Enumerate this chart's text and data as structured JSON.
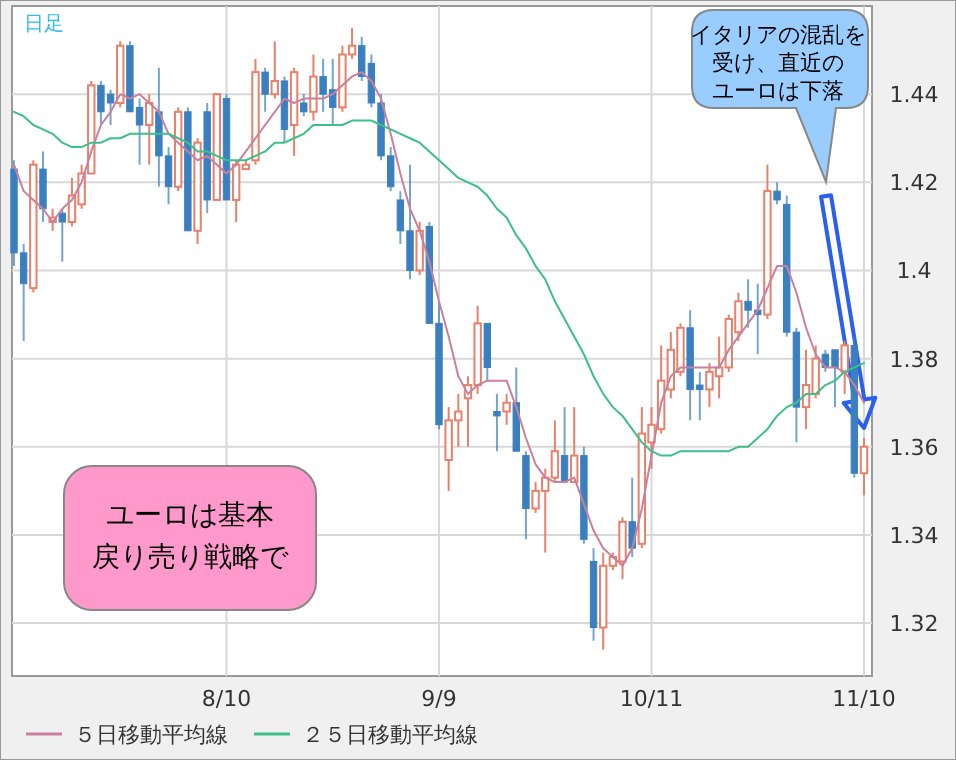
{
  "chart_data": {
    "type": "candlestick",
    "categories": [
      null,
      null,
      null,
      null,
      null,
      null,
      null,
      null,
      null,
      null,
      null,
      null,
      null,
      null,
      null,
      null,
      null,
      null,
      null,
      null,
      null,
      null,
      "8/10",
      null,
      null,
      null,
      null,
      null,
      null,
      null,
      null,
      null,
      null,
      null,
      null,
      null,
      null,
      null,
      null,
      null,
      null,
      null,
      null,
      null,
      "9/9",
      null,
      null,
      null,
      null,
      null,
      null,
      null,
      null,
      null,
      null,
      null,
      null,
      null,
      null,
      null,
      null,
      null,
      null,
      null,
      null,
      null,
      "10/11",
      null,
      null,
      null,
      null,
      null,
      null,
      null,
      null,
      null,
      null,
      null,
      null,
      null,
      null,
      null,
      null,
      null,
      null,
      null,
      null,
      null,
      "11/10"
    ],
    "colors": [
      "#3a80c0",
      "#3a80c0",
      "#e8806a",
      "#3a80c0",
      "#e8806a",
      "#3a80c0",
      "#e8806a",
      "#e8806a",
      "#e8806a",
      "#3a80c0",
      "#3a80c0",
      "#e8806a",
      "#3a80c0",
      "#3a80c0",
      "#e8806a",
      "#3a80c0",
      "#3a80c0",
      "#e8806a",
      "#3a80c0",
      "#e8806a",
      "#3a80c0",
      "#e8806a",
      "#3a80c0",
      "#e8806a",
      "#e8806a",
      "#e8806a",
      "#3a80c0",
      "#e8806a",
      "#3a80c0",
      "#e8806a",
      "#3a80c0",
      "#e8806a",
      "#3a80c0",
      "#3a80c0",
      "#e8806a",
      "#e8806a",
      "#3a80c0",
      "#3a80c0",
      "#3a80c0",
      "#3a80c0",
      "#3a80c0",
      "#3a80c0",
      "#e8806a",
      "#3a80c0",
      "#3a80c0",
      "#e8806a",
      "#e8806a",
      "#e8806a",
      "#e8806a",
      "#3a80c0",
      "#3a80c0",
      "#e8806a",
      "#3a80c0",
      "#3a80c0",
      "#e8806a",
      "#e8806a",
      "#e8806a",
      "#3a80c0",
      "#e8806a",
      "#3a80c0",
      "#3a80c0",
      "#e8806a",
      "#e8806a",
      "#e8806a",
      "#3a80c0",
      "#e8806a",
      "#e8806a",
      "#e8806a",
      "#e8806a",
      "#e8806a",
      "#3a80c0",
      "#3a80c0",
      "#e8806a",
      "#e8806a",
      "#e8806a",
      "#e8806a",
      "#3a80c0",
      "#3a80c0",
      "#e8806a",
      "#3a80c0",
      "#3a80c0",
      "#3a80c0",
      "#e8806a",
      "#e8806a",
      "#3a80c0",
      "#3a80c0",
      "#e8806a",
      "#3a80c0",
      "#e8806a"
    ],
    "ohlc": [
      [
        1.423,
        1.425,
        1.401,
        1.404
      ],
      [
        1.404,
        1.406,
        1.384,
        1.397
      ],
      [
        1.396,
        1.425,
        1.395,
        1.424
      ],
      [
        1.423,
        1.427,
        1.411,
        1.414
      ],
      [
        1.411,
        1.414,
        1.409,
        1.412
      ],
      [
        1.413,
        1.414,
        1.402,
        1.411
      ],
      [
        1.411,
        1.421,
        1.41,
        1.417
      ],
      [
        1.415,
        1.424,
        1.414,
        1.422
      ],
      [
        1.422,
        1.443,
        1.422,
        1.442
      ],
      [
        1.442,
        1.443,
        1.433,
        1.436
      ],
      [
        1.44,
        1.441,
        1.433,
        1.438
      ],
      [
        1.438,
        1.452,
        1.437,
        1.451
      ],
      [
        1.451,
        1.452,
        1.436,
        1.436
      ],
      [
        1.437,
        1.439,
        1.424,
        1.433
      ],
      [
        1.433,
        1.44,
        1.424,
        1.438
      ],
      [
        1.436,
        1.446,
        1.419,
        1.426
      ],
      [
        1.426,
        1.428,
        1.415,
        1.419
      ],
      [
        1.419,
        1.437,
        1.418,
        1.436
      ],
      [
        1.436,
        1.437,
        1.409,
        1.409
      ],
      [
        1.409,
        1.43,
        1.406,
        1.429
      ],
      [
        1.436,
        1.438,
        1.413,
        1.416
      ],
      [
        1.416,
        1.44,
        1.416,
        1.44
      ],
      [
        1.439,
        1.44,
        1.416,
        1.416
      ],
      [
        1.416,
        1.425,
        1.411,
        1.424
      ],
      [
        1.423,
        1.425,
        1.423,
        1.424
      ],
      [
        1.425,
        1.448,
        1.424,
        1.445
      ],
      [
        1.445,
        1.446,
        1.436,
        1.44
      ],
      [
        1.44,
        1.452,
        1.439,
        1.443
      ],
      [
        1.443,
        1.444,
        1.429,
        1.432
      ],
      [
        1.433,
        1.446,
        1.426,
        1.445
      ],
      [
        1.438,
        1.44,
        1.435,
        1.436
      ],
      [
        1.436,
        1.449,
        1.434,
        1.444
      ],
      [
        1.444,
        1.448,
        1.436,
        1.44
      ],
      [
        1.441,
        1.448,
        1.433,
        1.437
      ],
      [
        1.437,
        1.451,
        1.436,
        1.449
      ],
      [
        1.449,
        1.455,
        1.448,
        1.451
      ],
      [
        1.451,
        1.453,
        1.443,
        1.444
      ],
      [
        1.447,
        1.449,
        1.437,
        1.438
      ],
      [
        1.438,
        1.44,
        1.425,
        1.426
      ],
      [
        1.426,
        1.428,
        1.418,
        1.419
      ],
      [
        1.416,
        1.418,
        1.406,
        1.409
      ],
      [
        1.409,
        1.424,
        1.398,
        1.4
      ],
      [
        1.4,
        1.411,
        1.399,
        1.409
      ],
      [
        1.41,
        1.411,
        1.388,
        1.388
      ],
      [
        1.388,
        1.393,
        1.364,
        1.365
      ],
      [
        1.357,
        1.369,
        1.35,
        1.366
      ],
      [
        1.366,
        1.372,
        1.36,
        1.368
      ],
      [
        1.371,
        1.376,
        1.36,
        1.374
      ],
      [
        1.374,
        1.392,
        1.372,
        1.388
      ],
      [
        1.388,
        1.388,
        1.375,
        1.378
      ],
      [
        1.368,
        1.372,
        1.359,
        1.367
      ],
      [
        1.368,
        1.372,
        1.365,
        1.37
      ],
      [
        1.37,
        1.378,
        1.359,
        1.359
      ],
      [
        1.358,
        1.359,
        1.339,
        1.346
      ],
      [
        1.346,
        1.352,
        1.345,
        1.35
      ],
      [
        1.35,
        1.355,
        1.336,
        1.353
      ],
      [
        1.353,
        1.366,
        1.352,
        1.359
      ],
      [
        1.358,
        1.369,
        1.352,
        1.352
      ],
      [
        1.352,
        1.369,
        1.352,
        1.358
      ],
      [
        1.358,
        1.36,
        1.338,
        1.339
      ],
      [
        1.334,
        1.337,
        1.316,
        1.319
      ],
      [
        1.319,
        1.336,
        1.314,
        1.333
      ],
      [
        1.333,
        1.336,
        1.332,
        1.335
      ],
      [
        1.334,
        1.344,
        1.33,
        1.343
      ],
      [
        1.343,
        1.353,
        1.335,
        1.337
      ],
      [
        1.338,
        1.369,
        1.337,
        1.363
      ],
      [
        1.361,
        1.369,
        1.355,
        1.365
      ],
      [
        1.364,
        1.383,
        1.363,
        1.375
      ],
      [
        1.373,
        1.386,
        1.371,
        1.382
      ],
      [
        1.377,
        1.388,
        1.376,
        1.387
      ],
      [
        1.387,
        1.391,
        1.366,
        1.373
      ],
      [
        1.374,
        1.377,
        1.366,
        1.373
      ],
      [
        1.373,
        1.379,
        1.369,
        1.377
      ],
      [
        1.376,
        1.385,
        1.371,
        1.378
      ],
      [
        1.378,
        1.39,
        1.377,
        1.389
      ],
      [
        1.386,
        1.395,
        1.384,
        1.393
      ],
      [
        1.393,
        1.398,
        1.387,
        1.391
      ],
      [
        1.391,
        1.397,
        1.381,
        1.39
      ],
      [
        1.39,
        1.424,
        1.389,
        1.418
      ],
      [
        1.418,
        1.42,
        1.415,
        1.416
      ],
      [
        1.415,
        1.417,
        1.385,
        1.386
      ],
      [
        1.386,
        1.387,
        1.361,
        1.369
      ],
      [
        1.369,
        1.382,
        1.364,
        1.374
      ],
      [
        1.372,
        1.383,
        1.371,
        1.38
      ],
      [
        1.381,
        1.382,
        1.377,
        1.378
      ],
      [
        1.382,
        1.382,
        1.369,
        1.378
      ],
      [
        1.377,
        1.384,
        1.372,
        1.383
      ],
      [
        1.383,
        1.385,
        1.353,
        1.354
      ],
      [
        1.354,
        1.362,
        1.349,
        1.36
      ]
    ],
    "series": [
      {
        "type": "line",
        "name": "５日移動平均線",
        "color": "#c9809e",
        "values": [
          1.424,
          1.418,
          1.416,
          1.414,
          1.411,
          1.414,
          1.416,
          1.42,
          1.427,
          1.433,
          1.436,
          1.44,
          1.439,
          1.44,
          1.438,
          1.436,
          1.431,
          1.429,
          1.427,
          1.425,
          1.426,
          1.424,
          1.422,
          1.424,
          1.427,
          1.43,
          1.433,
          1.436,
          1.439,
          1.438,
          1.439,
          1.439,
          1.439,
          1.44,
          1.442,
          1.444,
          1.445,
          1.443,
          1.439,
          1.431,
          1.422,
          1.414,
          1.409,
          1.402,
          1.393,
          1.385,
          1.376,
          1.372,
          1.374,
          1.375,
          1.375,
          1.375,
          1.369,
          1.362,
          1.356,
          1.353,
          1.352,
          1.352,
          1.353,
          1.347,
          1.341,
          1.337,
          1.335,
          1.333,
          1.337,
          1.346,
          1.358,
          1.37,
          1.376,
          1.378,
          1.378,
          1.378,
          1.378,
          1.378,
          1.382,
          1.385,
          1.388,
          1.391,
          1.396,
          1.401,
          1.401,
          1.395,
          1.387,
          1.381,
          1.378,
          1.378,
          1.377,
          1.374,
          1.37
        ]
      },
      {
        "type": "line",
        "name": "２５日移動平均線",
        "color": "#3cc088",
        "values": [
          1.436,
          1.435,
          1.433,
          1.432,
          1.431,
          1.429,
          1.428,
          1.428,
          1.429,
          1.429,
          1.43,
          1.43,
          1.431,
          1.431,
          1.431,
          1.431,
          1.431,
          1.43,
          1.429,
          1.427,
          1.427,
          1.426,
          1.425,
          1.425,
          1.425,
          1.426,
          1.427,
          1.429,
          1.429,
          1.43,
          1.431,
          1.433,
          1.433,
          1.433,
          1.433,
          1.434,
          1.434,
          1.434,
          1.433,
          1.432,
          1.431,
          1.43,
          1.429,
          1.427,
          1.425,
          1.423,
          1.421,
          1.42,
          1.419,
          1.417,
          1.414,
          1.412,
          1.408,
          1.405,
          1.401,
          1.398,
          1.393,
          1.389,
          1.385,
          1.381,
          1.376,
          1.372,
          1.369,
          1.367,
          1.364,
          1.361,
          1.359,
          1.358,
          1.358,
          1.359,
          1.359,
          1.359,
          1.359,
          1.359,
          1.359,
          1.36,
          1.36,
          1.362,
          1.364,
          1.367,
          1.369,
          1.37,
          1.372,
          1.372,
          1.374,
          1.375,
          1.377,
          1.378,
          1.379
        ]
      }
    ],
    "ylim": [
      1.308,
      1.46
    ],
    "yticks": [
      1.32,
      1.34,
      1.36,
      1.38,
      1.4,
      1.42,
      1.44
    ],
    "grid": true,
    "legend": "bottom",
    "annotations": [
      "日足",
      "イタリアの混乱を受け、直近のユーロは下落",
      "ユーロは基本戻り売り戦略で"
    ]
  }
}
